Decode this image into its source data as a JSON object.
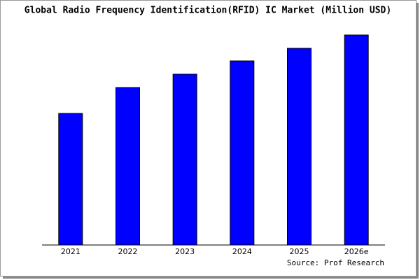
{
  "chart_data": {
    "type": "bar",
    "title": "Global Radio Frequency Identification(RFID) IC Market (Million USD)",
    "categories": [
      "2021",
      "2022",
      "2023",
      "2024",
      "2025",
      "2026e"
    ],
    "values": [
      188,
      225,
      244,
      263,
      281,
      300
    ],
    "color": "#0000ff",
    "ylim": [
      0,
      302
    ],
    "source": "Source: Prof Research"
  }
}
